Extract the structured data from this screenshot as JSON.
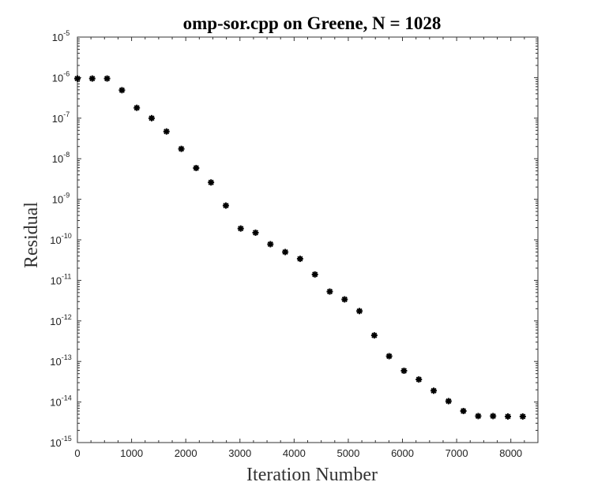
{
  "chart_data": {
    "type": "scatter",
    "title": "omp-sor.cpp on Greene,   N = 1028",
    "xlabel": "Iteration Number",
    "ylabel": "Residual",
    "xlim": [
      0,
      8500
    ],
    "ylim_log10": [
      -15,
      -5
    ],
    "yscale": "log",
    "grid": false,
    "marker": "asterisk",
    "marker_color": "#000000",
    "x_ticks": [
      "0",
      "1000",
      "2000",
      "3000",
      "4000",
      "5000",
      "6000",
      "7000",
      "8000"
    ],
    "y_ticks": [
      {
        "base": "10",
        "exp": "-15"
      },
      {
        "base": "10",
        "exp": "-14"
      },
      {
        "base": "10",
        "exp": "-13"
      },
      {
        "base": "10",
        "exp": "-12"
      },
      {
        "base": "10",
        "exp": "-11"
      },
      {
        "base": "10",
        "exp": "-10"
      },
      {
        "base": "10",
        "exp": "-9"
      },
      {
        "base": "10",
        "exp": "-8"
      },
      {
        "base": "10",
        "exp": "-7"
      },
      {
        "base": "10",
        "exp": "-6"
      },
      {
        "base": "10",
        "exp": "-5"
      }
    ],
    "points": [
      {
        "x": 0,
        "y": 9.5e-07
      },
      {
        "x": 274,
        "y": 9.5e-07
      },
      {
        "x": 548,
        "y": 9.5e-07
      },
      {
        "x": 822,
        "y": 4.9e-07
      },
      {
        "x": 1096,
        "y": 1.8e-07
      },
      {
        "x": 1370,
        "y": 1e-07
      },
      {
        "x": 1644,
        "y": 4.7e-08
      },
      {
        "x": 1918,
        "y": 1.75e-08
      },
      {
        "x": 2192,
        "y": 5.9e-09
      },
      {
        "x": 2466,
        "y": 2.6e-09
      },
      {
        "x": 2740,
        "y": 7e-10
      },
      {
        "x": 3014,
        "y": 1.9e-10
      },
      {
        "x": 3288,
        "y": 1.5e-10
      },
      {
        "x": 3562,
        "y": 7.8e-11
      },
      {
        "x": 3836,
        "y": 5e-11
      },
      {
        "x": 4110,
        "y": 3.4e-11
      },
      {
        "x": 4384,
        "y": 1.4e-11
      },
      {
        "x": 4658,
        "y": 5.3e-12
      },
      {
        "x": 4932,
        "y": 3.4e-12
      },
      {
        "x": 5206,
        "y": 1.75e-12
      },
      {
        "x": 5480,
        "y": 4.4e-13
      },
      {
        "x": 5754,
        "y": 1.35e-13
      },
      {
        "x": 6028,
        "y": 5.9e-14
      },
      {
        "x": 6302,
        "y": 3.6e-14
      },
      {
        "x": 6576,
        "y": 1.9e-14
      },
      {
        "x": 6850,
        "y": 1.05e-14
      },
      {
        "x": 7124,
        "y": 6e-15
      },
      {
        "x": 7398,
        "y": 4.5e-15
      },
      {
        "x": 7672,
        "y": 4.5e-15
      },
      {
        "x": 7946,
        "y": 4.4e-15
      },
      {
        "x": 8220,
        "y": 4.4e-15
      }
    ]
  }
}
